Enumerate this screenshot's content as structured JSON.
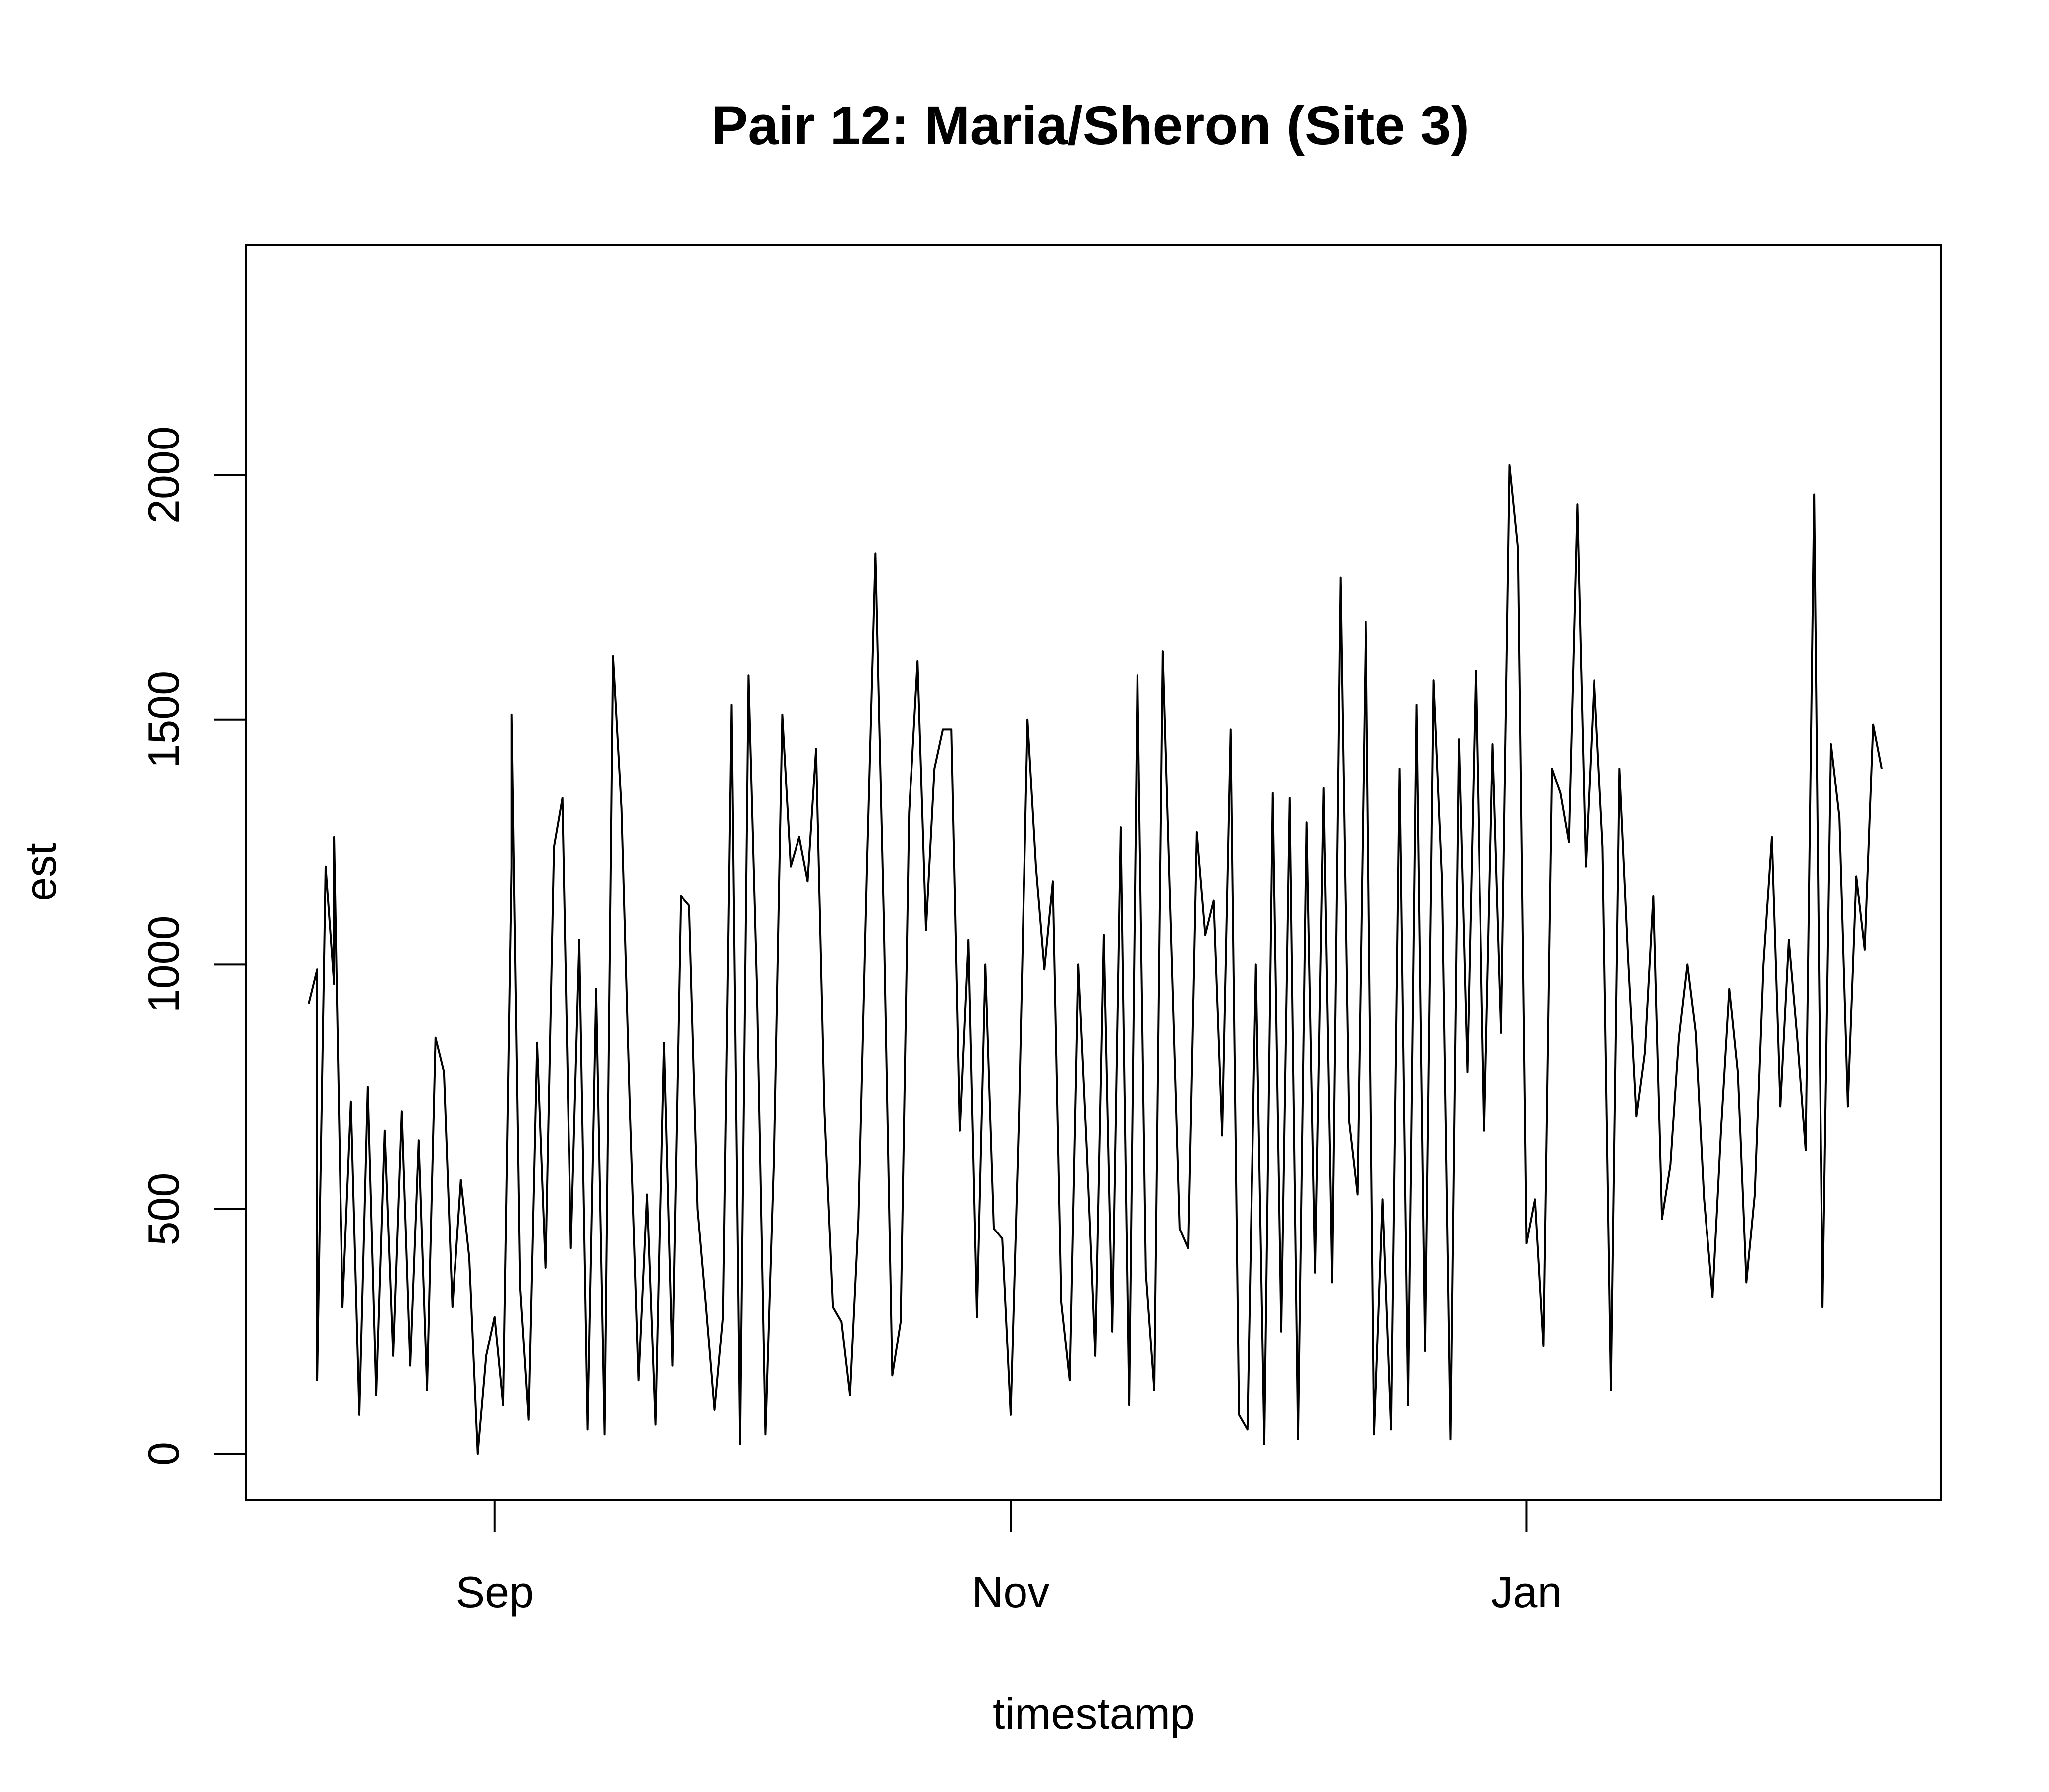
{
  "chart_data": {
    "type": "line",
    "title": "Pair 12: Maria/Sheron (Site 3)",
    "xlabel": "timestamp",
    "ylabel": "est",
    "x_start": "2023-08-10",
    "x_end": "2024-02-12",
    "x_tick_dates": [
      "2023-09-01",
      "2023-11-01",
      "2024-01-01"
    ],
    "x_tick_labels": [
      "Sep",
      "Nov",
      "Jan"
    ],
    "y_ticks": [
      0,
      500,
      1000,
      1500,
      2000
    ],
    "ylim": [
      -95,
      2470
    ],
    "grid": false,
    "legend": "none",
    "series": [
      {
        "color": "#000000",
        "points": [
          [
            "2023-08-10",
            920
          ],
          [
            "2023-08-11",
            990
          ],
          [
            "2023-08-11",
            150
          ],
          [
            "2023-08-12",
            1200
          ],
          [
            "2023-08-13",
            960
          ],
          [
            "2023-08-13",
            1260
          ],
          [
            "2023-08-14",
            300
          ],
          [
            "2023-08-15",
            720
          ],
          [
            "2023-08-16",
            80
          ],
          [
            "2023-08-17",
            750
          ],
          [
            "2023-08-18",
            120
          ],
          [
            "2023-08-19",
            660
          ],
          [
            "2023-08-20",
            200
          ],
          [
            "2023-08-21",
            700
          ],
          [
            "2023-08-22",
            180
          ],
          [
            "2023-08-23",
            640
          ],
          [
            "2023-08-24",
            130
          ],
          [
            "2023-08-25",
            850
          ],
          [
            "2023-08-26",
            780
          ],
          [
            "2023-08-27",
            300
          ],
          [
            "2023-08-28",
            560
          ],
          [
            "2023-08-29",
            400
          ],
          [
            "2023-08-30",
            0
          ],
          [
            "2023-08-31",
            200
          ],
          [
            "2023-09-01",
            280
          ],
          [
            "2023-09-02",
            100
          ],
          [
            "2023-09-03",
            1200
          ],
          [
            "2023-09-03",
            1510
          ],
          [
            "2023-09-04",
            340
          ],
          [
            "2023-09-05",
            70
          ],
          [
            "2023-09-06",
            840
          ],
          [
            "2023-09-07",
            380
          ],
          [
            "2023-09-08",
            1240
          ],
          [
            "2023-09-09",
            1340
          ],
          [
            "2023-09-10",
            420
          ],
          [
            "2023-09-11",
            1050
          ],
          [
            "2023-09-12",
            50
          ],
          [
            "2023-09-13",
            950
          ],
          [
            "2023-09-14",
            40
          ],
          [
            "2023-09-15",
            1630
          ],
          [
            "2023-09-16",
            1320
          ],
          [
            "2023-09-17",
            700
          ],
          [
            "2023-09-18",
            150
          ],
          [
            "2023-09-19",
            530
          ],
          [
            "2023-09-20",
            60
          ],
          [
            "2023-09-21",
            840
          ],
          [
            "2023-09-22",
            180
          ],
          [
            "2023-09-23",
            1140
          ],
          [
            "2023-09-24",
            1120
          ],
          [
            "2023-09-25",
            500
          ],
          [
            "2023-09-26",
            300
          ],
          [
            "2023-09-27",
            90
          ],
          [
            "2023-09-28",
            280
          ],
          [
            "2023-09-29",
            1530
          ],
          [
            "2023-09-30",
            20
          ],
          [
            "2023-10-01",
            1590
          ],
          [
            "2023-10-02",
            950
          ],
          [
            "2023-10-03",
            40
          ],
          [
            "2023-10-04",
            600
          ],
          [
            "2023-10-05",
            1510
          ],
          [
            "2023-10-06",
            1200
          ],
          [
            "2023-10-07",
            1260
          ],
          [
            "2023-10-08",
            1170
          ],
          [
            "2023-10-09",
            1440
          ],
          [
            "2023-10-10",
            700
          ],
          [
            "2023-10-11",
            300
          ],
          [
            "2023-10-12",
            270
          ],
          [
            "2023-10-13",
            120
          ],
          [
            "2023-10-14",
            480
          ],
          [
            "2023-10-15",
            1200
          ],
          [
            "2023-10-16",
            1840
          ],
          [
            "2023-10-17",
            1090
          ],
          [
            "2023-10-18",
            160
          ],
          [
            "2023-10-19",
            270
          ],
          [
            "2023-10-20",
            1310
          ],
          [
            "2023-10-21",
            1620
          ],
          [
            "2023-10-22",
            1070
          ],
          [
            "2023-10-23",
            1400
          ],
          [
            "2023-10-24",
            1480
          ],
          [
            "2023-10-25",
            1480
          ],
          [
            "2023-10-26",
            660
          ],
          [
            "2023-10-27",
            1050
          ],
          [
            "2023-10-28",
            280
          ],
          [
            "2023-10-29",
            1000
          ],
          [
            "2023-10-30",
            460
          ],
          [
            "2023-10-31",
            440
          ],
          [
            "2023-11-01",
            80
          ],
          [
            "2023-11-02",
            700
          ],
          [
            "2023-11-03",
            1500
          ],
          [
            "2023-11-04",
            1200
          ],
          [
            "2023-11-05",
            990
          ],
          [
            "2023-11-06",
            1170
          ],
          [
            "2023-11-07",
            310
          ],
          [
            "2023-11-08",
            150
          ],
          [
            "2023-11-09",
            1000
          ],
          [
            "2023-11-10",
            620
          ],
          [
            "2023-11-11",
            200
          ],
          [
            "2023-11-12",
            1060
          ],
          [
            "2023-11-13",
            250
          ],
          [
            "2023-11-14",
            1280
          ],
          [
            "2023-11-15",
            100
          ],
          [
            "2023-11-16",
            1590
          ],
          [
            "2023-11-17",
            370
          ],
          [
            "2023-11-18",
            130
          ],
          [
            "2023-11-19",
            1640
          ],
          [
            "2023-11-20",
            1050
          ],
          [
            "2023-11-21",
            460
          ],
          [
            "2023-11-22",
            420
          ],
          [
            "2023-11-23",
            1270
          ],
          [
            "2023-11-24",
            1060
          ],
          [
            "2023-11-25",
            1130
          ],
          [
            "2023-11-26",
            650
          ],
          [
            "2023-11-27",
            1480
          ],
          [
            "2023-11-28",
            80
          ],
          [
            "2023-11-29",
            50
          ],
          [
            "2023-11-30",
            1000
          ],
          [
            "2023-12-01",
            20
          ],
          [
            "2023-12-02",
            1350
          ],
          [
            "2023-12-03",
            250
          ],
          [
            "2023-12-04",
            1340
          ],
          [
            "2023-12-05",
            30
          ],
          [
            "2023-12-06",
            1290
          ],
          [
            "2023-12-07",
            370
          ],
          [
            "2023-12-08",
            1360
          ],
          [
            "2023-12-09",
            350
          ],
          [
            "2023-12-10",
            1790
          ],
          [
            "2023-12-11",
            680
          ],
          [
            "2023-12-12",
            530
          ],
          [
            "2023-12-13",
            1700
          ],
          [
            "2023-12-14",
            40
          ],
          [
            "2023-12-15",
            520
          ],
          [
            "2023-12-16",
            50
          ],
          [
            "2023-12-17",
            1400
          ],
          [
            "2023-12-18",
            100
          ],
          [
            "2023-12-19",
            1530
          ],
          [
            "2023-12-20",
            210
          ],
          [
            "2023-12-21",
            1580
          ],
          [
            "2023-12-22",
            1170
          ],
          [
            "2023-12-23",
            30
          ],
          [
            "2023-12-24",
            1460
          ],
          [
            "2023-12-25",
            780
          ],
          [
            "2023-12-26",
            1600
          ],
          [
            "2023-12-27",
            660
          ],
          [
            "2023-12-28",
            1450
          ],
          [
            "2023-12-29",
            860
          ],
          [
            "2023-12-30",
            2020
          ],
          [
            "2023-12-31",
            1850
          ],
          [
            "2024-01-01",
            430
          ],
          [
            "2024-01-02",
            520
          ],
          [
            "2024-01-03",
            220
          ],
          [
            "2024-01-04",
            1400
          ],
          [
            "2024-01-05",
            1350
          ],
          [
            "2024-01-06",
            1250
          ],
          [
            "2024-01-07",
            1940
          ],
          [
            "2024-01-08",
            1200
          ],
          [
            "2024-01-09",
            1580
          ],
          [
            "2024-01-10",
            1240
          ],
          [
            "2024-01-11",
            130
          ],
          [
            "2024-01-12",
            1400
          ],
          [
            "2024-01-13",
            1020
          ],
          [
            "2024-01-14",
            690
          ],
          [
            "2024-01-15",
            820
          ],
          [
            "2024-01-16",
            1140
          ],
          [
            "2024-01-17",
            480
          ],
          [
            "2024-01-18",
            590
          ],
          [
            "2024-01-19",
            850
          ],
          [
            "2024-01-20",
            1000
          ],
          [
            "2024-01-21",
            860
          ],
          [
            "2024-01-22",
            520
          ],
          [
            "2024-01-23",
            320
          ],
          [
            "2024-01-24",
            660
          ],
          [
            "2024-01-25",
            950
          ],
          [
            "2024-01-26",
            780
          ],
          [
            "2024-01-27",
            350
          ],
          [
            "2024-01-28",
            530
          ],
          [
            "2024-01-29",
            1000
          ],
          [
            "2024-01-30",
            1260
          ],
          [
            "2024-01-31",
            710
          ],
          [
            "2024-02-01",
            1050
          ],
          [
            "2024-02-02",
            850
          ],
          [
            "2024-02-03",
            620
          ],
          [
            "2024-02-04",
            1960
          ],
          [
            "2024-02-05",
            300
          ],
          [
            "2024-02-06",
            1450
          ],
          [
            "2024-02-07",
            1300
          ],
          [
            "2024-02-08",
            710
          ],
          [
            "2024-02-09",
            1180
          ],
          [
            "2024-02-10",
            1030
          ],
          [
            "2024-02-11",
            1490
          ],
          [
            "2024-02-12",
            1400
          ]
        ]
      }
    ]
  }
}
